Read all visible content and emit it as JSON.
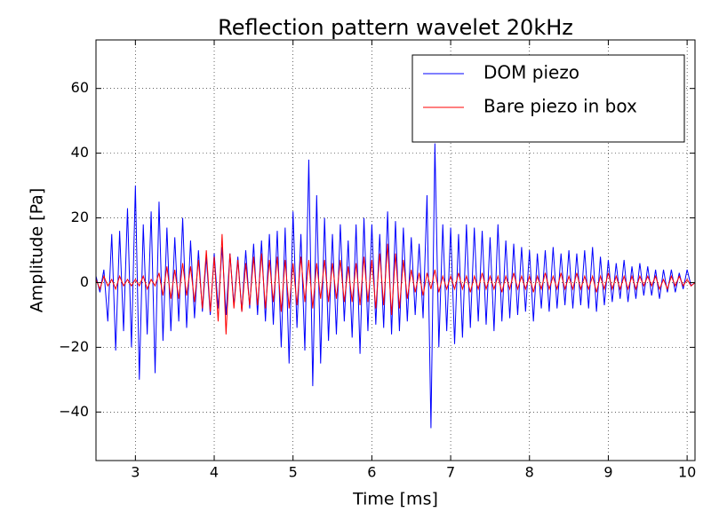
{
  "chart_data": {
    "type": "line",
    "title": "Reflection pattern wavelet 20kHz",
    "xlabel": "Time [ms]",
    "ylabel": "Amplitude [Pa]",
    "x": [
      2.5,
      2.55,
      2.6,
      2.65,
      2.7,
      2.75,
      2.8,
      2.85,
      2.9,
      2.95,
      3.0,
      3.05,
      3.1,
      3.15,
      3.2,
      3.25,
      3.3,
      3.35,
      3.4,
      3.45,
      3.5,
      3.55,
      3.6,
      3.65,
      3.7,
      3.75,
      3.8,
      3.85,
      3.9,
      3.95,
      4.0,
      4.05,
      4.1,
      4.15,
      4.2,
      4.25,
      4.3,
      4.35,
      4.4,
      4.45,
      4.5,
      4.55,
      4.6,
      4.65,
      4.7,
      4.75,
      4.8,
      4.85,
      4.9,
      4.95,
      5.0,
      5.05,
      5.1,
      5.15,
      5.2,
      5.25,
      5.3,
      5.35,
      5.4,
      5.45,
      5.5,
      5.55,
      5.6,
      5.65,
      5.7,
      5.75,
      5.8,
      5.85,
      5.9,
      5.95,
      6.0,
      6.05,
      6.1,
      6.15,
      6.2,
      6.25,
      6.3,
      6.35,
      6.4,
      6.45,
      6.5,
      6.55,
      6.6,
      6.65,
      6.7,
      6.75,
      6.8,
      6.85,
      6.9,
      6.95,
      7.0,
      7.05,
      7.1,
      7.15,
      7.2,
      7.25,
      7.3,
      7.35,
      7.4,
      7.45,
      7.5,
      7.55,
      7.6,
      7.65,
      7.7,
      7.75,
      7.8,
      7.85,
      7.9,
      7.95,
      8.0,
      8.05,
      8.1,
      8.15,
      8.2,
      8.25,
      8.3,
      8.35,
      8.4,
      8.45,
      8.5,
      8.55,
      8.6,
      8.65,
      8.7,
      8.75,
      8.8,
      8.85,
      8.9,
      8.95,
      9.0,
      9.05,
      9.1,
      9.15,
      9.2,
      9.25,
      9.3,
      9.35,
      9.4,
      9.45,
      9.5,
      9.55,
      9.6,
      9.65,
      9.7,
      9.75,
      9.8,
      9.85,
      9.9,
      9.95,
      10.0,
      10.05,
      10.1
    ],
    "series": [
      {
        "name": "DOM piezo",
        "color": "#0000ff",
        "values": [
          2,
          -3,
          4,
          -12,
          15,
          -21,
          16,
          -15,
          23,
          -20,
          30,
          -30,
          18,
          -16,
          22,
          -28,
          25,
          -18,
          17,
          -15,
          14,
          -12,
          20,
          -14,
          13,
          -11,
          10,
          -9,
          8,
          -10,
          9,
          -8,
          11,
          -10,
          9,
          -7,
          8,
          -9,
          10,
          -8,
          12,
          -10,
          13,
          -12,
          15,
          -13,
          16,
          -20,
          17,
          -25,
          22,
          -14,
          15,
          -21,
          38,
          -32,
          27,
          -25,
          20,
          -18,
          15,
          -16,
          18,
          -12,
          13,
          -17,
          18,
          -22,
          20,
          -15,
          18,
          -13,
          15,
          -14,
          22,
          -16,
          19,
          -15,
          17,
          -12,
          14,
          -10,
          12,
          -11,
          27,
          -45,
          43,
          -20,
          18,
          -15,
          17,
          -19,
          15,
          -17,
          18,
          -14,
          17,
          -12,
          16,
          -13,
          14,
          -15,
          18,
          -12,
          13,
          -11,
          12,
          -10,
          11,
          -9,
          10,
          -12,
          9,
          -8,
          10,
          -9,
          11,
          -8,
          9,
          -7,
          10,
          -8,
          9,
          -7,
          10,
          -8,
          11,
          -9,
          8,
          -7,
          7,
          -6,
          6,
          -5,
          7,
          -6,
          5,
          -5,
          6,
          -4,
          5,
          -4,
          4,
          -5,
          4,
          -3,
          4,
          -3,
          3,
          -2,
          4,
          -1,
          0
        ]
      },
      {
        "name": "Bare piezo in box",
        "color": "#ff0000",
        "values": [
          1,
          -2,
          2,
          -1,
          1,
          -2,
          2,
          -1,
          1,
          -1,
          1,
          -1,
          2,
          -2,
          1,
          -1,
          3,
          -4,
          5,
          -5,
          4,
          -5,
          6,
          -4,
          5,
          -6,
          7,
          -8,
          10,
          -9,
          8,
          -12,
          15,
          -16,
          9,
          -8,
          7,
          -9,
          6,
          -7,
          8,
          -7,
          9,
          -8,
          7,
          -6,
          8,
          -9,
          7,
          -8,
          6,
          -7,
          8,
          -6,
          7,
          -8,
          6,
          -5,
          7,
          -6,
          6,
          -5,
          7,
          -6,
          5,
          -6,
          6,
          -7,
          8,
          -6,
          7,
          -8,
          9,
          -7,
          12,
          -10,
          9,
          -8,
          7,
          -5,
          4,
          -3,
          3,
          -4,
          3,
          -2,
          4,
          -3,
          2,
          -2,
          2,
          -2,
          3,
          -2,
          2,
          -3,
          2,
          -2,
          3,
          -2,
          2,
          -2,
          2,
          -3,
          2,
          -2,
          3,
          -2,
          2,
          -2,
          2,
          -3,
          2,
          -2,
          3,
          -2,
          2,
          -2,
          3,
          -2,
          2,
          -2,
          3,
          -2,
          2,
          -2,
          2,
          -3,
          2,
          -2,
          3,
          -2,
          2,
          -2,
          2,
          -2,
          2,
          -2,
          2,
          -1,
          2,
          -1,
          2,
          -2,
          1,
          -2,
          2,
          -1,
          2,
          -1,
          1,
          -1,
          0
        ]
      }
    ],
    "xlim": [
      2.5,
      10.1
    ],
    "ylim": [
      -55,
      75
    ],
    "xticks": [
      3,
      4,
      5,
      6,
      7,
      8,
      9,
      10
    ],
    "yticks": [
      {
        "value": -40,
        "label": "−40"
      },
      {
        "value": -20,
        "label": "−20"
      },
      0,
      20,
      40,
      60
    ],
    "grid": true,
    "legend": "upper-right"
  }
}
